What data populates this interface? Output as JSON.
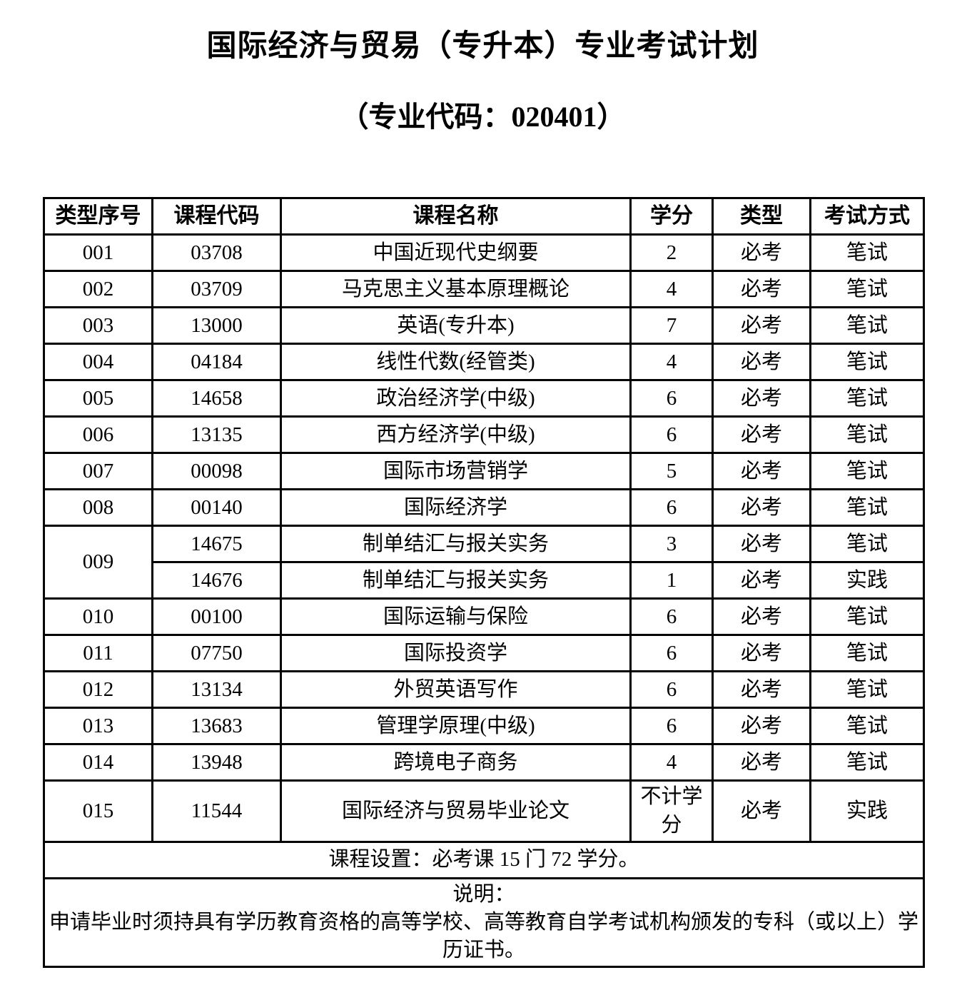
{
  "title": "国际经济与贸易（专升本）专业考试计划",
  "subtitle": "（专业代码：020401）",
  "table": {
    "headers": [
      "类型序号",
      "课程代码",
      "课程名称",
      "学分",
      "类型",
      "考试方式"
    ],
    "rows": [
      {
        "seq": "001",
        "code": "03708",
        "name": "中国近现代史纲要",
        "credits": "2",
        "type": "必考",
        "method": "笔试"
      },
      {
        "seq": "002",
        "code": "03709",
        "name": "马克思主义基本原理概论",
        "credits": "4",
        "type": "必考",
        "method": "笔试"
      },
      {
        "seq": "003",
        "code": "13000",
        "name": "英语(专升本)",
        "credits": "7",
        "type": "必考",
        "method": "笔试"
      },
      {
        "seq": "004",
        "code": "04184",
        "name": "线性代数(经管类)",
        "credits": "4",
        "type": "必考",
        "method": "笔试"
      },
      {
        "seq": "005",
        "code": "14658",
        "name": "政治经济学(中级)",
        "credits": "6",
        "type": "必考",
        "method": "笔试"
      },
      {
        "seq": "006",
        "code": "13135",
        "name": "西方经济学(中级)",
        "credits": "6",
        "type": "必考",
        "method": "笔试"
      },
      {
        "seq": "007",
        "code": "00098",
        "name": "国际市场营销学",
        "credits": "5",
        "type": "必考",
        "method": "笔试"
      },
      {
        "seq": "008",
        "code": "00140",
        "name": "国际经济学",
        "credits": "6",
        "type": "必考",
        "method": "笔试"
      },
      {
        "seq": "009",
        "seq_rowspan": 2,
        "code": "14675",
        "name": "制单结汇与报关实务",
        "credits": "3",
        "type": "必考",
        "method": "笔试"
      },
      {
        "seq": null,
        "code": "14676",
        "name": "制单结汇与报关实务",
        "credits": "1",
        "type": "必考",
        "method": "实践"
      },
      {
        "seq": "010",
        "code": "00100",
        "name": "国际运输与保险",
        "credits": "6",
        "type": "必考",
        "method": "笔试"
      },
      {
        "seq": "011",
        "code": "07750",
        "name": "国际投资学",
        "credits": "6",
        "type": "必考",
        "method": "笔试"
      },
      {
        "seq": "012",
        "code": "13134",
        "name": "外贸英语写作",
        "credits": "6",
        "type": "必考",
        "method": "笔试"
      },
      {
        "seq": "013",
        "code": "13683",
        "name": "管理学原理(中级)",
        "credits": "6",
        "type": "必考",
        "method": "笔试"
      },
      {
        "seq": "014",
        "code": "13948",
        "name": "跨境电子商务",
        "credits": "4",
        "type": "必考",
        "method": "笔试"
      },
      {
        "seq": "015",
        "code": "11544",
        "name": "国际经济与贸易毕业论文",
        "credits": "不计学分",
        "type": "必考",
        "method": "实践"
      }
    ],
    "course_setup": "课程设置：必考课 15 门 72 学分。",
    "notes_label": "说明：",
    "notes_text": "申请毕业时须持具有学历教育资格的高等学校、高等教育自学考试机构颁发的专科（或以上）学历证书。"
  }
}
